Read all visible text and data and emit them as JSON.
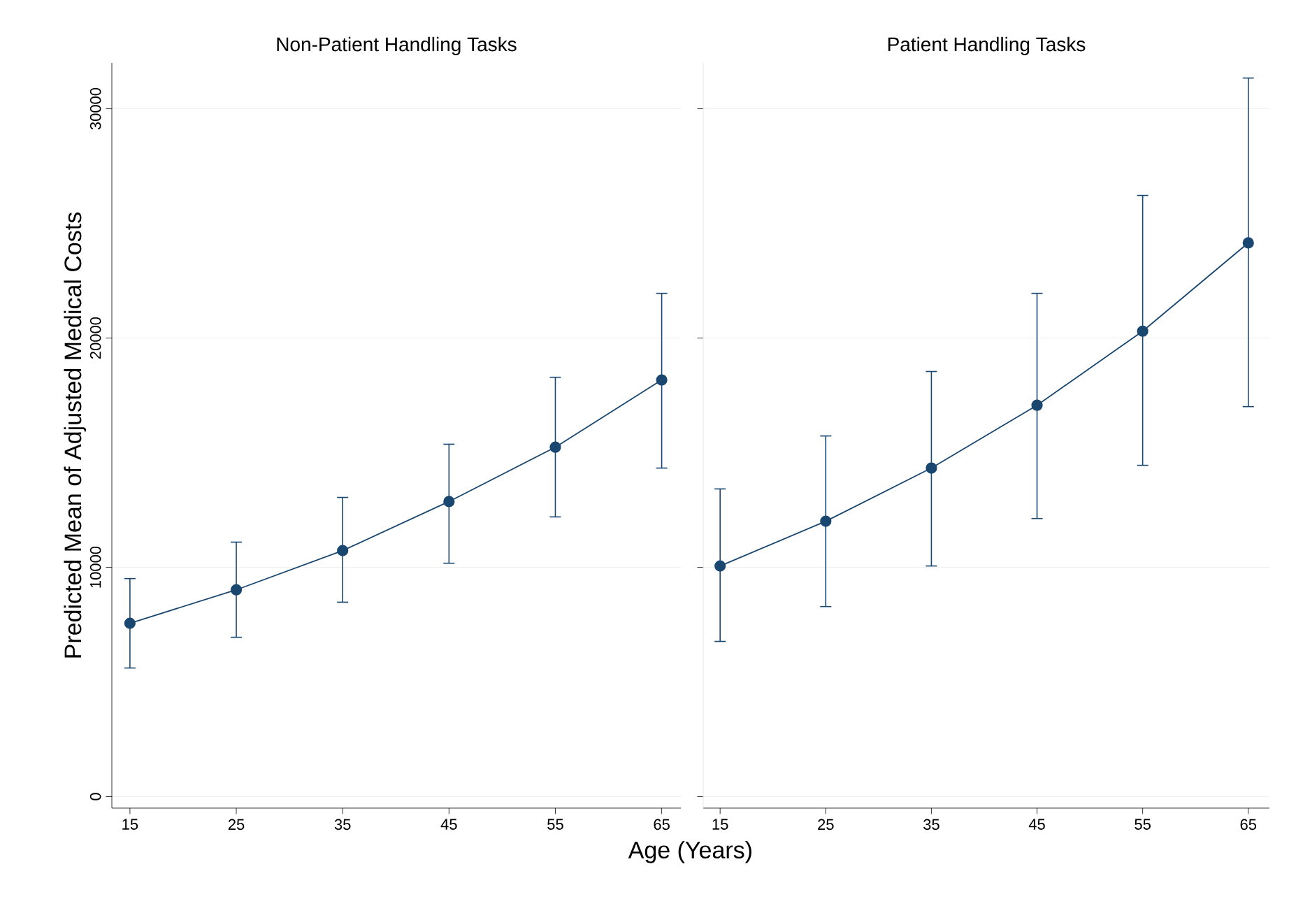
{
  "chart_data": [
    {
      "type": "line",
      "title": "Non-Patient Handling Tasks",
      "xlabel": "Age (Years)",
      "ylabel": "Predicted Mean of Adjusted Medical Costs",
      "x": [
        15,
        25,
        35,
        45,
        55,
        65
      ],
      "series": [
        {
          "color": "#1a476f",
          "values": [
            7560,
            9020,
            10730,
            12870,
            15240,
            18170
          ],
          "errors": [
            [
              5610,
              9510
            ],
            [
              6950,
              11100
            ],
            [
              8480,
              13050
            ],
            [
              10180,
              15370
            ],
            [
              12200,
              18290
            ],
            [
              14330,
              21950
            ]
          ]
        }
      ],
      "xlim": [
        13.3,
        66.8
      ],
      "ylim": [
        -500,
        32000
      ],
      "xticks": [
        15,
        25,
        35,
        45,
        55,
        65
      ],
      "yticks": [
        0,
        10000,
        20000,
        30000
      ],
      "grid": "y",
      "marker": "circle",
      "line_style": "solid"
    },
    {
      "type": "line",
      "title": "Patient Handling Tasks",
      "x": [
        15,
        25,
        35,
        45,
        55,
        65
      ],
      "series": [
        {
          "color": "#1a476f",
          "values": [
            10060,
            12010,
            14330,
            17070,
            20300,
            24150
          ],
          "errors": [
            [
              6770,
              13420
            ],
            [
              8290,
              15730
            ],
            [
              10060,
              18540
            ],
            [
              12130,
              21950
            ],
            [
              14450,
              26220
            ],
            [
              17010,
              31340
            ]
          ]
        }
      ],
      "xlim": [
        13.4,
        67.0
      ],
      "ylim": [
        -500,
        32000
      ],
      "xticks": [
        15,
        25,
        35,
        45,
        55,
        65
      ],
      "yticks": [
        0,
        10000,
        20000,
        30000
      ],
      "grid": "y",
      "marker": "circle",
      "line_style": "solid",
      "tick_labels": "x"
    }
  ]
}
